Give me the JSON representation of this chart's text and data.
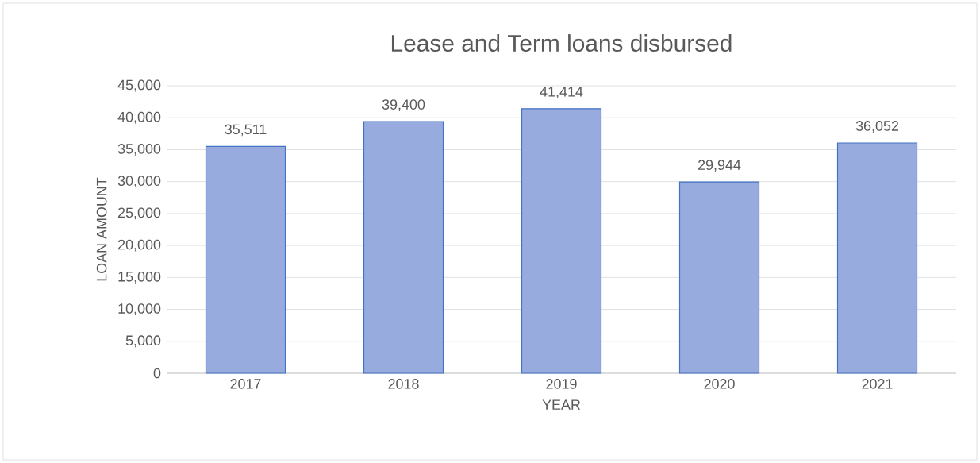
{
  "chart_data": {
    "type": "bar",
    "title": "Lease and Term loans disbursed",
    "xlabel": "YEAR",
    "ylabel": "LOAN AMOUNT",
    "categories": [
      "2017",
      "2018",
      "2019",
      "2020",
      "2021"
    ],
    "values": [
      35511,
      39400,
      41414,
      29944,
      36052
    ],
    "value_labels": [
      "35,511",
      "39,400",
      "41,414",
      "29,944",
      "36,052"
    ],
    "color": "#98abde",
    "ylim": [
      0,
      45000
    ],
    "yticks": [
      {
        "value": 0,
        "label": "0"
      },
      {
        "value": 5000,
        "label": "5,000"
      },
      {
        "value": 10000,
        "label": "10,000"
      },
      {
        "value": 15000,
        "label": "15,000"
      },
      {
        "value": 20000,
        "label": "20,000"
      },
      {
        "value": 25000,
        "label": "25,000"
      },
      {
        "value": 30000,
        "label": "30,000"
      },
      {
        "value": 35000,
        "label": "35,000"
      },
      {
        "value": 40000,
        "label": "40,000"
      },
      {
        "value": 45000,
        "label": "45,000"
      }
    ],
    "grid": "y"
  }
}
